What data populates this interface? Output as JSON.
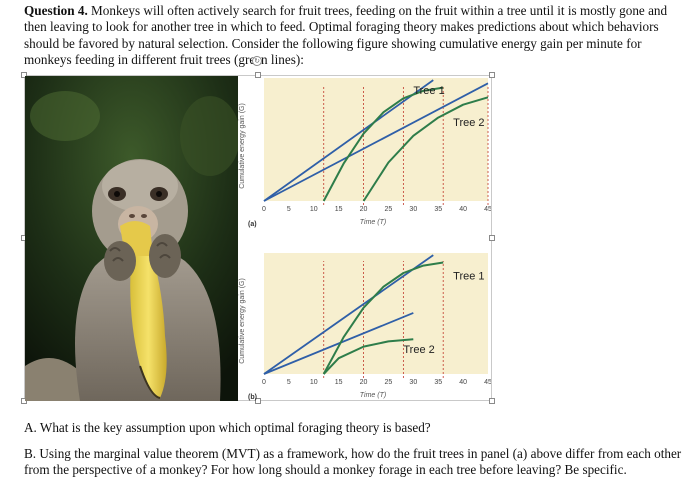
{
  "question": {
    "number_label": "Question 4.",
    "text": " Monkeys will often actively search for fruit trees, feeding on the fruit within a tree until it is mostly gone and then leaving to look for another tree in which to feed. Optimal foraging theory makes predictions about which behaviors should be favored by natural selection. Consider the following figure showing cumulative energy gain per minute for monkeys feeding in different fruit trees (green lines):"
  },
  "figure": {
    "ylabel": "Cumulative energy gain (G)",
    "xlabel": "Time (T)",
    "panel_a_label": "(a)",
    "panel_b_label": "(b)",
    "x_ticks": [
      "0",
      "5",
      "10",
      "15",
      "20",
      "25",
      "30",
      "35",
      "40",
      "45"
    ],
    "panel_a": {
      "tree1_label": "Tree 1",
      "tree2_label": "Tree 2"
    },
    "panel_b": {
      "tree1_label": "Tree 1",
      "tree2_label": "Tree 2"
    }
  },
  "chart_data": [
    {
      "type": "line",
      "panel": "(a)",
      "xlabel": "Time (T)",
      "ylabel": "Cumulative energy gain (G)",
      "xlim": [
        0,
        45
      ],
      "series": [
        {
          "name": "Tree 1",
          "x": [
            12,
            16,
            20,
            24,
            28,
            32,
            36
          ],
          "y": [
            0,
            3.5,
            6.3,
            8.3,
            9.6,
            10.3,
            10.6
          ]
        },
        {
          "name": "Tree 2",
          "x": [
            20,
            25,
            30,
            35,
            40,
            45
          ],
          "y": [
            0,
            3.6,
            6.1,
            7.8,
            9.0,
            9.7
          ]
        }
      ]
    },
    {
      "type": "line",
      "panel": "(b)",
      "xlabel": "Time (T)",
      "ylabel": "Cumulative energy gain (G)",
      "xlim": [
        0,
        45
      ],
      "series": [
        {
          "name": "Tree 1",
          "x": [
            12,
            16,
            20,
            24,
            28,
            32,
            36
          ],
          "y": [
            0,
            3.5,
            6.3,
            8.3,
            9.6,
            10.3,
            10.6
          ]
        },
        {
          "name": "Tree 2",
          "x": [
            12,
            15,
            20,
            25,
            30
          ],
          "y": [
            0,
            1.5,
            2.6,
            3.1,
            3.3
          ]
        }
      ]
    }
  ],
  "sub_questions": {
    "a": "A. What is the key assumption upon which optimal foraging theory is based?",
    "b": "B. Using the marginal value theorem (MVT) as a framework, how do the fruit trees in panel (a) above differ from each other from the perspective of a monkey? For how long should a monkey forage in each tree before leaving? Be specific."
  },
  "colors": {
    "chart_background": "#f7efcf",
    "blue_line": "#2f5fa8",
    "green_line": "#2e7d4a",
    "tick_marks": "#c0392b"
  }
}
